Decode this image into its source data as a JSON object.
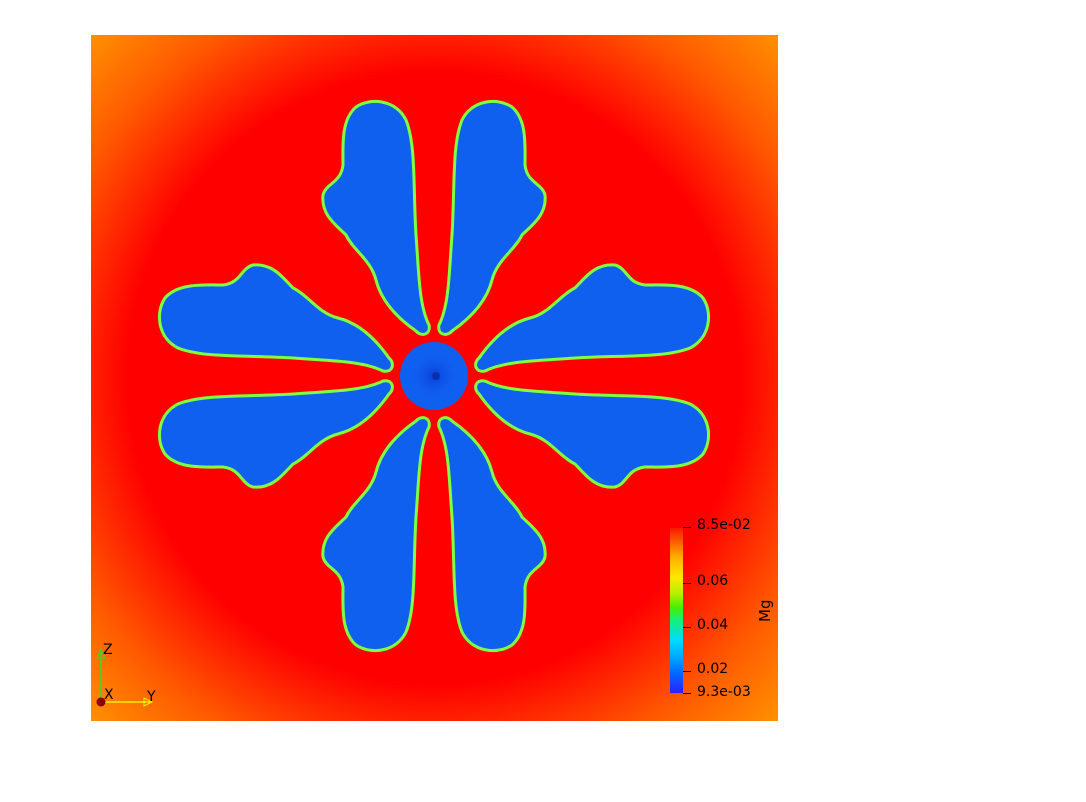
{
  "colorbar": {
    "title": "Mg",
    "max_label": "8.5e-02",
    "min_label": "9.3e-03",
    "tick_labels": [
      "0.06",
      "0.04",
      "0.02"
    ],
    "colors": [
      "#2a22ff",
      "#00a8ff",
      "#13f07a",
      "#ffe800",
      "#ff5a00",
      "#f21a00"
    ]
  },
  "orientation_axes": {
    "z_label": "Z",
    "x_label": "X",
    "y_label": "Y"
  },
  "field": {
    "background_color": "#ff0000",
    "corner_color": "#ff8c00",
    "dendrite_color": "#1060f0",
    "interface_color": "#7fff40"
  }
}
